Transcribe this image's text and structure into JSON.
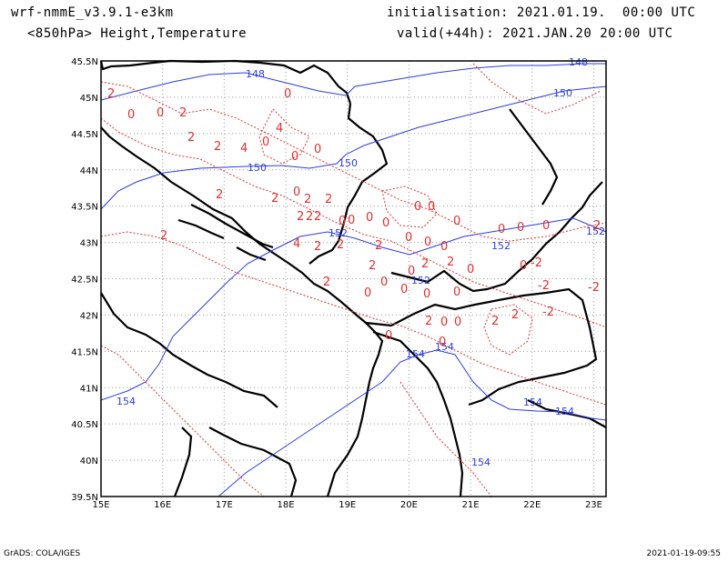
{
  "header": {
    "model": "wrf-nmmE_v3.9.1-e3km",
    "field": "<850hPa> Height,Temperature",
    "init": "initialisation: 2021.01.19.  00:00 UTC",
    "valid": "valid(+44h): 2021.JAN.20 20:00 UTC"
  },
  "axes": {
    "lat_labels": [
      "45.5N",
      "45N",
      "44.5N",
      "44N",
      "43.5N",
      "43N",
      "42.5N",
      "42N",
      "41.5N",
      "41N",
      "40.5N",
      "40N",
      "39.5N"
    ],
    "lon_labels": [
      "15E",
      "16E",
      "17E",
      "18E",
      "19E",
      "20E",
      "21E",
      "22E",
      "23E"
    ],
    "lat_range": [
      39.5,
      45.5
    ],
    "lon_range": [
      15,
      23.2
    ],
    "grid": "dotted"
  },
  "contours": {
    "height_color": "#2c3de0",
    "temp_color": "#e0312f",
    "height_labels": [
      "148",
      "148",
      "150",
      "150",
      "150",
      "152",
      "152",
      "152",
      "152",
      "154",
      "154",
      "154",
      "154",
      "154",
      "154"
    ],
    "temp_labels": [
      "2",
      "0",
      "0",
      "2",
      "4",
      "0",
      "2",
      "2",
      "4",
      "0",
      "0",
      "0",
      "0",
      "2",
      "2",
      "2",
      "2",
      "2",
      "2",
      "2",
      "0",
      "0",
      "0",
      "0",
      "0",
      "0",
      "0",
      "0",
      "0",
      "0",
      "2",
      "2",
      "4",
      "2",
      "2",
      "2",
      "0",
      "0",
      "0",
      "2",
      "2",
      "0",
      "2",
      "2",
      "0",
      "0",
      "0",
      "0",
      "0",
      "0",
      "0",
      "-2",
      "-2",
      "-2",
      "-2",
      "2",
      "2",
      "2",
      "0",
      "0",
      "0",
      "0"
    ]
  },
  "footer": {
    "left": "GrADS: COLA/IGES",
    "right": "2021-01-19-09:55"
  }
}
